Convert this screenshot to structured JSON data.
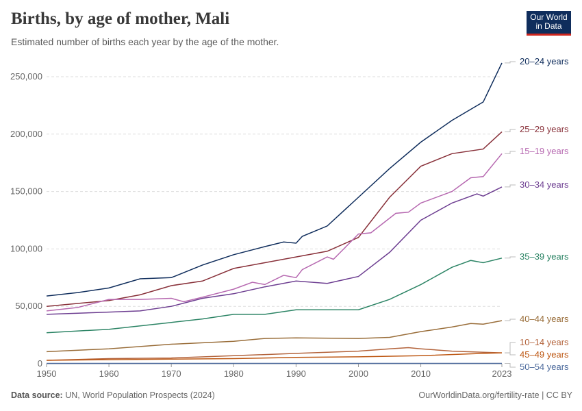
{
  "title": "Births, by age of mother, Mali",
  "subtitle": "Estimated number of births each year by the age of the mother.",
  "logo": {
    "line1": "Our World",
    "line2": "in Data"
  },
  "footer": {
    "source_label": "Data source:",
    "source": "UN, World Population Prospects (2024)",
    "right": "OurWorldinData.org/fertility-rate | CC BY"
  },
  "chart_data": {
    "type": "line",
    "title": "Births, by age of mother, Mali",
    "xlim": [
      1950,
      2023
    ],
    "ylim": [
      0,
      250000
    ],
    "grid": "horizontal dashed",
    "legend": "right, end-of-line labels",
    "x_ticks": [
      "1950",
      "1960",
      "1970",
      "1980",
      "1990",
      "2000",
      "2010",
      "2023"
    ],
    "y_ticks": [
      "0",
      "50,000",
      "100,000",
      "150,000",
      "200,000",
      "250,000"
    ],
    "series": [
      {
        "name": "20–24 years",
        "color": "#0f2d5c",
        "x": [
          1950,
          1955,
          1960,
          1965,
          1970,
          1975,
          1980,
          1985,
          1988,
          1990,
          1991,
          1995,
          2000,
          2005,
          2010,
          2015,
          2020,
          2023
        ],
        "y": [
          59000,
          62000,
          66000,
          74000,
          75000,
          86000,
          95000,
          102000,
          106000,
          105000,
          111000,
          120000,
          145000,
          170000,
          193000,
          212000,
          228000,
          262000
        ]
      },
      {
        "name": "25–29 years",
        "color": "#883039",
        "x": [
          1950,
          1960,
          1965,
          1970,
          1975,
          1980,
          1985,
          1990,
          1995,
          2000,
          2005,
          2010,
          2015,
          2020,
          2023
        ],
        "y": [
          50000,
          55000,
          60000,
          68000,
          72000,
          83000,
          88000,
          93000,
          98000,
          110000,
          145000,
          172000,
          183000,
          187000,
          202000
        ]
      },
      {
        "name": "15–19 years",
        "color": "#b668b0",
        "x": [
          1950,
          1955,
          1960,
          1965,
          1970,
          1972,
          1975,
          1980,
          1983,
          1985,
          1988,
          1990,
          1991,
          1995,
          1996,
          2000,
          2002,
          2006,
          2008,
          2010,
          2015,
          2018,
          2020,
          2023
        ],
        "y": [
          46000,
          49000,
          56000,
          56000,
          57000,
          54000,
          58000,
          65000,
          71000,
          69000,
          77000,
          75000,
          82000,
          93000,
          91000,
          113000,
          114000,
          131000,
          132000,
          140000,
          150000,
          162000,
          163000,
          183000
        ]
      },
      {
        "name": "30–34 years",
        "color": "#6d3e91",
        "x": [
          1950,
          1960,
          1965,
          1970,
          1975,
          1980,
          1985,
          1990,
          1995,
          2000,
          2005,
          2010,
          2015,
          2019,
          2020,
          2023
        ],
        "y": [
          43000,
          45000,
          46000,
          50000,
          57000,
          61000,
          67000,
          72000,
          70000,
          76000,
          97000,
          125000,
          140000,
          148000,
          146000,
          154000
        ]
      },
      {
        "name": "35–39 years",
        "color": "#2c8465",
        "x": [
          1950,
          1960,
          1970,
          1975,
          1980,
          1985,
          1990,
          1995,
          2000,
          2005,
          2010,
          2015,
          2018,
          2020,
          2023
        ],
        "y": [
          27000,
          30000,
          36000,
          39000,
          43000,
          43000,
          47000,
          47000,
          47000,
          56000,
          69000,
          84000,
          90000,
          88000,
          92000
        ]
      },
      {
        "name": "40–44 years",
        "color": "#996d39",
        "x": [
          1950,
          1960,
          1970,
          1980,
          1985,
          1990,
          2000,
          2005,
          2010,
          2015,
          2018,
          2020,
          2023
        ],
        "y": [
          10500,
          13000,
          17000,
          19500,
          22000,
          22500,
          22000,
          23000,
          28000,
          32000,
          35000,
          34500,
          37500
        ]
      },
      {
        "name": "10–14 years",
        "color": "#b3633b",
        "x": [
          1950,
          1960,
          1970,
          1980,
          1990,
          2000,
          2005,
          2008,
          2010,
          2015,
          2020,
          2023
        ],
        "y": [
          3000,
          4500,
          5000,
          7000,
          9000,
          11000,
          13000,
          14000,
          13000,
          11000,
          10000,
          9500
        ]
      },
      {
        "name": "45–49 years",
        "color": "#be5915",
        "x": [
          1950,
          1960,
          1970,
          1980,
          1990,
          2000,
          2010,
          2020,
          2023
        ],
        "y": [
          3000,
          3500,
          4000,
          4500,
          5500,
          6000,
          7000,
          9000,
          9500
        ]
      },
      {
        "name": "50–54 years",
        "color": "#4c6a9c",
        "x": [
          1950,
          2023
        ],
        "y": [
          300,
          300
        ]
      }
    ]
  }
}
